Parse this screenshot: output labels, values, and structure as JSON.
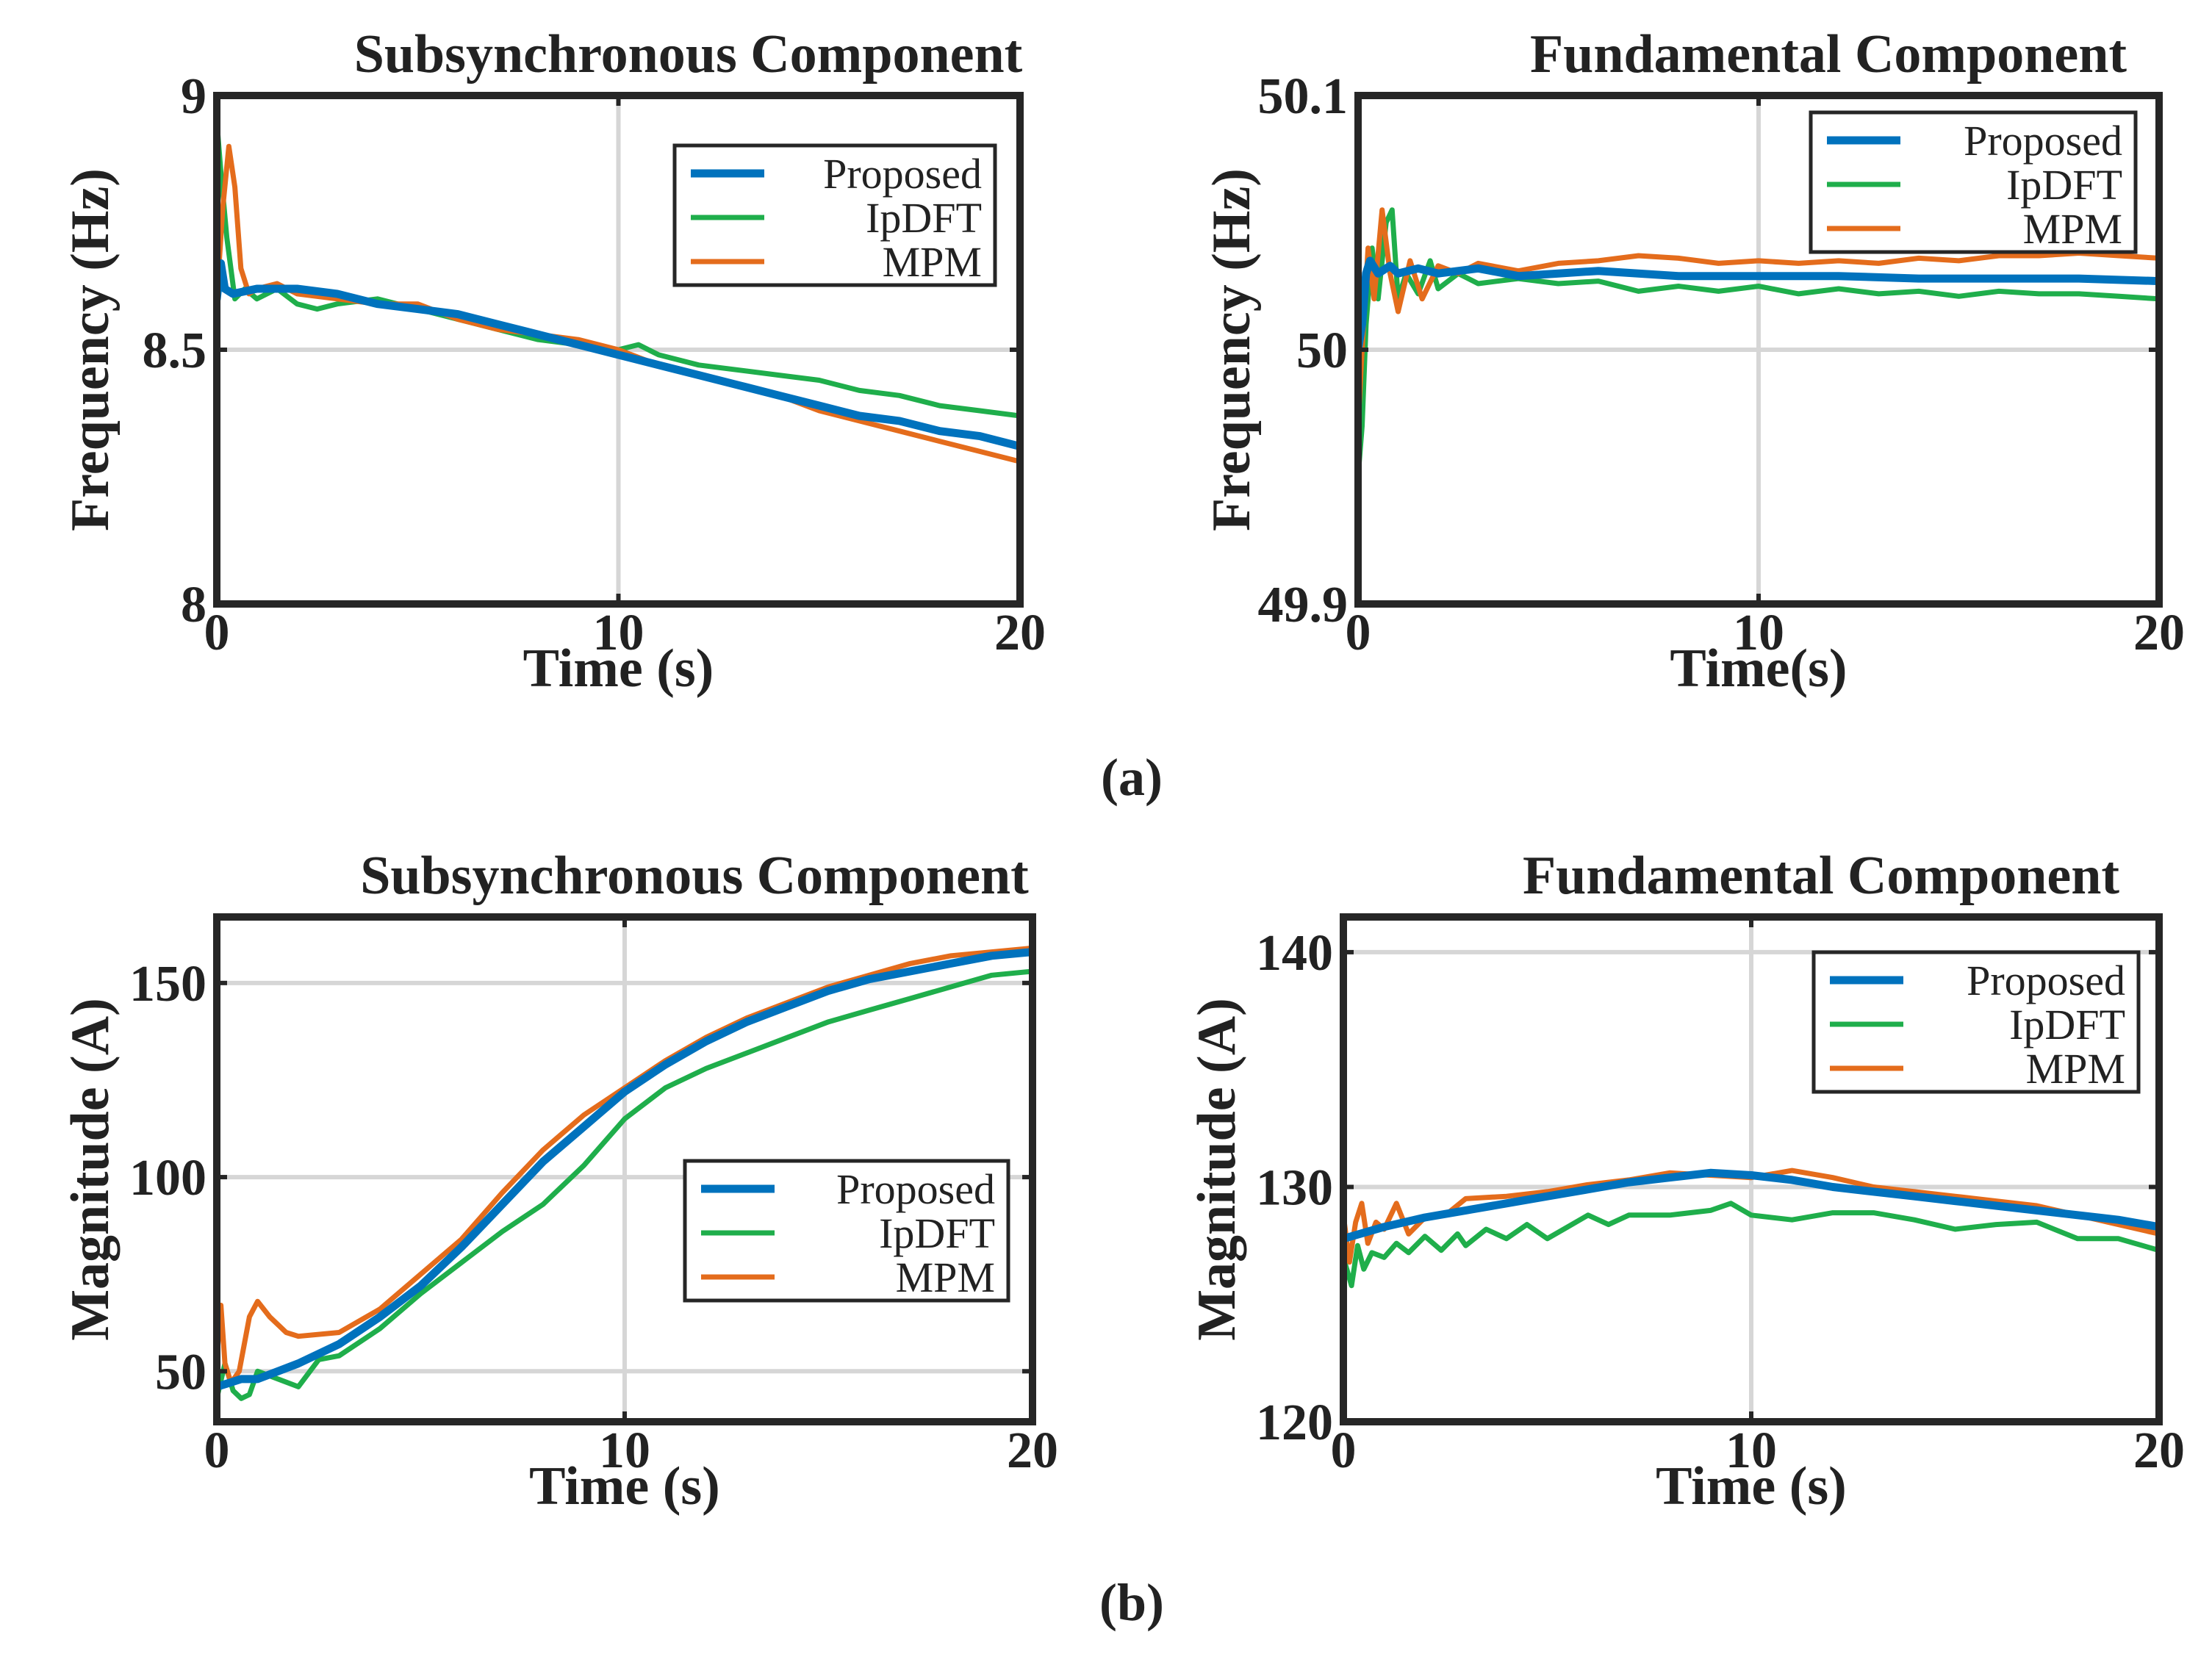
{
  "captions": {
    "a": "(a)",
    "b": "(b)"
  },
  "colors": {
    "Proposed": "#0072BD",
    "IpDFT": "#1FAE4B",
    "MPM": "#E46C1C",
    "grid": "#d6d6d6",
    "frame": "#262626"
  },
  "chart_data": [
    {
      "type": "line",
      "title": "Subsynchronous Component",
      "xlabel": "Time (s)",
      "ylabel": "Frequency (Hz)",
      "xlim": [
        0,
        20
      ],
      "ylim": [
        8,
        9
      ],
      "xticks": [
        "0",
        "10",
        "20"
      ],
      "yticks": [
        "8",
        "8.5",
        "9"
      ],
      "legend_position": "top-right",
      "grid": true,
      "series": [
        {
          "name": "Proposed",
          "x": [
            0,
            0.1,
            0.2,
            0.4,
            1,
            2,
            3,
            4,
            5,
            6,
            7,
            8,
            9,
            10,
            11,
            12,
            13,
            14,
            15,
            16,
            17,
            18,
            19,
            20
          ],
          "y": [
            8.6,
            8.67,
            8.62,
            8.61,
            8.62,
            8.62,
            8.61,
            8.59,
            8.58,
            8.57,
            8.55,
            8.53,
            8.51,
            8.49,
            8.47,
            8.45,
            8.43,
            8.41,
            8.39,
            8.37,
            8.36,
            8.34,
            8.33,
            8.31
          ]
        },
        {
          "name": "IpDFT",
          "x": [
            0,
            0.1,
            0.25,
            0.45,
            0.7,
            1,
            1.5,
            2,
            2.5,
            3,
            4,
            5,
            6,
            7,
            8,
            9,
            10,
            10.5,
            11,
            12,
            13,
            14,
            15,
            16,
            17,
            18,
            19,
            20
          ],
          "y": [
            8.95,
            8.85,
            8.72,
            8.6,
            8.62,
            8.6,
            8.62,
            8.59,
            8.58,
            8.59,
            8.6,
            8.58,
            8.56,
            8.54,
            8.52,
            8.51,
            8.5,
            8.51,
            8.49,
            8.47,
            8.46,
            8.45,
            8.44,
            8.42,
            8.41,
            8.39,
            8.38,
            8.37
          ]
        },
        {
          "name": "MPM",
          "x": [
            0,
            0.15,
            0.3,
            0.45,
            0.6,
            0.8,
            1,
            1.5,
            2,
            3,
            4,
            5,
            6,
            7,
            8,
            9,
            10,
            11,
            12,
            13,
            14,
            15,
            16,
            17,
            18,
            19,
            20
          ],
          "y": [
            8.6,
            8.78,
            8.9,
            8.82,
            8.66,
            8.61,
            8.62,
            8.63,
            8.61,
            8.6,
            8.59,
            8.59,
            8.56,
            8.54,
            8.53,
            8.52,
            8.5,
            8.47,
            8.45,
            8.43,
            8.41,
            8.38,
            8.36,
            8.34,
            8.32,
            8.3,
            8.28
          ]
        }
      ]
    },
    {
      "type": "line",
      "title": "Fundamental Component",
      "xlabel": "Time(s)",
      "ylabel": "Frequency (Hz)",
      "xlim": [
        0,
        20
      ],
      "ylim": [
        49.9,
        50.1
      ],
      "xticks": [
        "0",
        "10",
        "20"
      ],
      "yticks": [
        "49.9",
        "50",
        "50.1"
      ],
      "legend_position": "top-right",
      "grid": true,
      "series": [
        {
          "name": "Proposed",
          "x": [
            0,
            0.1,
            0.2,
            0.3,
            0.5,
            0.8,
            1,
            1.5,
            2,
            3,
            4,
            5,
            6,
            8,
            10,
            12,
            14,
            16,
            18,
            20
          ],
          "y": [
            50.0,
            50.01,
            50.03,
            50.035,
            50.03,
            50.033,
            50.03,
            50.032,
            50.03,
            50.032,
            50.029,
            50.03,
            50.031,
            50.029,
            50.029,
            50.029,
            50.028,
            50.028,
            50.028,
            50.027
          ]
        },
        {
          "name": "IpDFT",
          "x": [
            0,
            0.1,
            0.2,
            0.35,
            0.5,
            0.7,
            0.85,
            1,
            1.2,
            1.5,
            1.8,
            2,
            2.5,
            3,
            4,
            5,
            6,
            7,
            8,
            9,
            10,
            11,
            12,
            13,
            14,
            15,
            16,
            17,
            18,
            19,
            20
          ],
          "y": [
            49.95,
            49.97,
            50.01,
            50.04,
            50.02,
            50.05,
            50.055,
            50.02,
            50.03,
            50.022,
            50.035,
            50.024,
            50.03,
            50.026,
            50.028,
            50.026,
            50.027,
            50.023,
            50.025,
            50.023,
            50.025,
            50.022,
            50.024,
            50.022,
            50.023,
            50.021,
            50.023,
            50.022,
            50.022,
            50.021,
            50.02
          ]
        },
        {
          "name": "MPM",
          "x": [
            0,
            0.1,
            0.25,
            0.4,
            0.6,
            0.8,
            1,
            1.3,
            1.6,
            2,
            2.5,
            3,
            4,
            5,
            6,
            7,
            8,
            9,
            10,
            11,
            12,
            13,
            14,
            15,
            16,
            17,
            18,
            19,
            20
          ],
          "y": [
            49.97,
            50.0,
            50.04,
            50.02,
            50.055,
            50.03,
            50.015,
            50.035,
            50.02,
            50.033,
            50.03,
            50.034,
            50.031,
            50.034,
            50.035,
            50.037,
            50.036,
            50.034,
            50.035,
            50.034,
            50.035,
            50.034,
            50.036,
            50.035,
            50.037,
            50.037,
            50.038,
            50.037,
            50.036
          ]
        }
      ]
    },
    {
      "type": "line",
      "title": "Subsynchronous Component",
      "xlabel": "Time (s)",
      "ylabel": "Magnitude (A)",
      "xlim": [
        0,
        20
      ],
      "ylim": [
        37,
        167
      ],
      "xticks": [
        "0",
        "10",
        "20"
      ],
      "yticks": [
        "50",
        "100",
        "150"
      ],
      "legend_position": "lower-right",
      "grid": true,
      "series": [
        {
          "name": "Proposed",
          "x": [
            0,
            0.3,
            0.6,
            1,
            2,
            3,
            4,
            5,
            6,
            7,
            8,
            9,
            10,
            11,
            12,
            13,
            14,
            15,
            16,
            17,
            18,
            19,
            20
          ],
          "y": [
            46,
            47,
            48,
            48,
            52,
            57,
            64,
            72,
            82,
            93,
            104,
            113,
            122,
            129,
            135,
            140,
            144,
            148,
            151,
            153,
            155,
            157,
            158
          ]
        },
        {
          "name": "IpDFT",
          "x": [
            0,
            0.2,
            0.4,
            0.6,
            0.8,
            1,
            1.5,
            2,
            2.5,
            3,
            4,
            5,
            6,
            7,
            8,
            9,
            10,
            11,
            12,
            13,
            14,
            15,
            16,
            17,
            18,
            19,
            20
          ],
          "y": [
            43,
            52,
            45,
            43,
            44,
            50,
            48,
            46,
            53,
            54,
            61,
            70,
            78,
            86,
            93,
            103,
            115,
            123,
            128,
            132,
            136,
            140,
            143,
            146,
            149,
            152,
            153
          ]
        },
        {
          "name": "MPM",
          "x": [
            0,
            0.1,
            0.2,
            0.35,
            0.55,
            0.8,
            1,
            1.3,
            1.7,
            2,
            3,
            4,
            5,
            6,
            7,
            8,
            9,
            10,
            11,
            12,
            13,
            14,
            15,
            16,
            17,
            18,
            19,
            20
          ],
          "y": [
            53,
            67,
            52,
            47,
            50,
            64,
            68,
            64,
            60,
            59,
            60,
            66,
            75,
            84,
            96,
            107,
            116,
            123,
            130,
            136,
            141,
            145,
            149,
            152,
            155,
            157,
            158,
            159
          ]
        }
      ]
    },
    {
      "type": "line",
      "title": "Fundamental Component",
      "xlabel": "Time (s)",
      "ylabel": "Magnitude (A)",
      "xlim": [
        0,
        20
      ],
      "ylim": [
        120,
        141.5
      ],
      "xticks": [
        "0",
        "10",
        "20"
      ],
      "yticks": [
        "120",
        "130",
        "140"
      ],
      "legend_position": "top-right",
      "grid": true,
      "series": [
        {
          "name": "Proposed",
          "x": [
            0,
            1,
            2,
            3,
            4,
            5,
            6,
            7,
            8,
            9,
            10,
            11,
            12,
            13,
            14,
            15,
            16,
            17,
            18,
            19,
            20
          ],
          "y": [
            127.8,
            128.3,
            128.7,
            129.0,
            129.3,
            129.6,
            129.9,
            130.2,
            130.4,
            130.6,
            130.5,
            130.3,
            130.0,
            129.8,
            129.6,
            129.4,
            129.2,
            129.0,
            128.8,
            128.6,
            128.3
          ]
        },
        {
          "name": "IpDFT",
          "x": [
            0,
            0.2,
            0.35,
            0.5,
            0.7,
            1,
            1.3,
            1.6,
            2,
            2.4,
            2.8,
            3,
            3.5,
            4,
            4.5,
            5,
            5.5,
            6,
            6.5,
            7,
            8,
            9,
            9.5,
            10,
            11,
            12,
            13,
            14,
            15,
            16,
            17,
            18,
            19,
            20
          ],
          "y": [
            127.0,
            125.8,
            127.5,
            126.5,
            127.2,
            127.0,
            127.6,
            127.2,
            127.9,
            127.3,
            128.0,
            127.5,
            128.2,
            127.8,
            128.4,
            127.8,
            128.3,
            128.8,
            128.4,
            128.8,
            128.8,
            129.0,
            129.3,
            128.8,
            128.6,
            128.9,
            128.9,
            128.6,
            128.2,
            128.4,
            128.5,
            127.8,
            127.8,
            127.3
          ]
        },
        {
          "name": "MPM",
          "x": [
            0,
            0.15,
            0.3,
            0.45,
            0.6,
            0.8,
            1,
            1.3,
            1.6,
            2,
            2.5,
            3,
            4,
            5,
            6,
            7,
            8,
            9,
            10,
            11,
            12,
            13,
            14,
            15,
            16,
            17,
            18,
            19,
            20
          ],
          "y": [
            128.8,
            126.8,
            128.5,
            129.3,
            127.6,
            128.5,
            128.2,
            129.3,
            128.0,
            128.7,
            128.8,
            129.5,
            129.6,
            129.8,
            130.1,
            130.3,
            130.6,
            130.5,
            130.4,
            130.7,
            130.4,
            130.0,
            129.8,
            129.6,
            129.4,
            129.2,
            128.8,
            128.4,
            128.0
          ]
        }
      ]
    }
  ]
}
